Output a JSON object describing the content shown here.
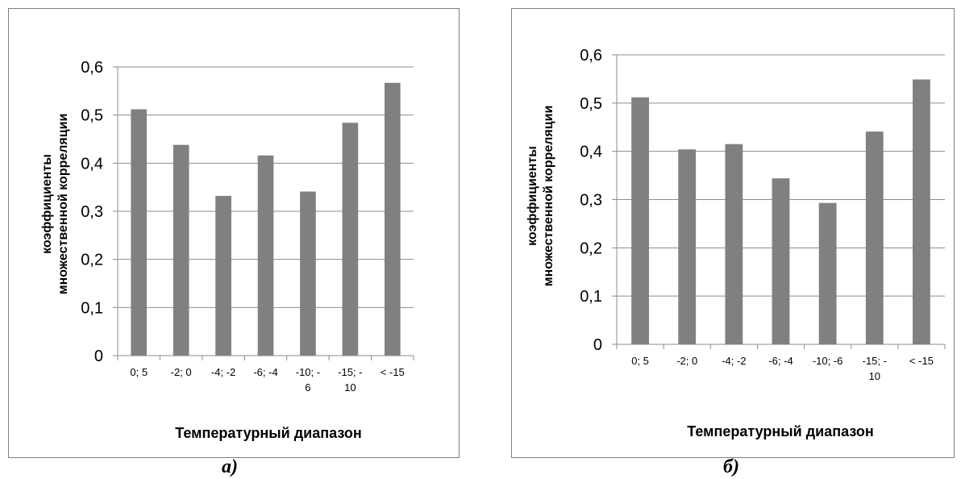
{
  "chart_data": [
    {
      "type": "bar",
      "caption": "а)",
      "categories": [
        [
          "0; 5"
        ],
        [
          "-2; 0"
        ],
        [
          "-4; -2"
        ],
        [
          "-6; -4"
        ],
        [
          "-10; -",
          "6"
        ],
        [
          "-15; -",
          "10"
        ],
        [
          "< -15"
        ]
      ],
      "values": [
        0.512,
        0.438,
        0.332,
        0.416,
        0.341,
        0.484,
        0.567
      ],
      "xlabel": "Температурный диапазон",
      "ylabel": [
        "коэффициенты",
        "множественной корреляции"
      ],
      "ylim": [
        0,
        0.6
      ],
      "yticks": [
        "0",
        "0,1",
        "0,2",
        "0,3",
        "0,4",
        "0,5",
        "0,6"
      ],
      "grid": true,
      "bar_color": "#808080"
    },
    {
      "type": "bar",
      "caption": "б)",
      "categories": [
        [
          "0; 5"
        ],
        [
          "-2; 0"
        ],
        [
          "-4; -2"
        ],
        [
          "-6; -4"
        ],
        [
          "-10; -6"
        ],
        [
          "-15; -",
          "10"
        ],
        [
          "< -15"
        ]
      ],
      "values": [
        0.512,
        0.404,
        0.415,
        0.344,
        0.293,
        0.441,
        0.549
      ],
      "xlabel": "Температурный диапазон",
      "ylabel": [
        "коэффициенты",
        "множественной корреляции"
      ],
      "ylim": [
        0,
        0.6
      ],
      "yticks": [
        "0",
        "0,1",
        "0,2",
        "0,3",
        "0,4",
        "0,5",
        "0,6"
      ],
      "grid": true,
      "bar_color": "#808080"
    }
  ]
}
